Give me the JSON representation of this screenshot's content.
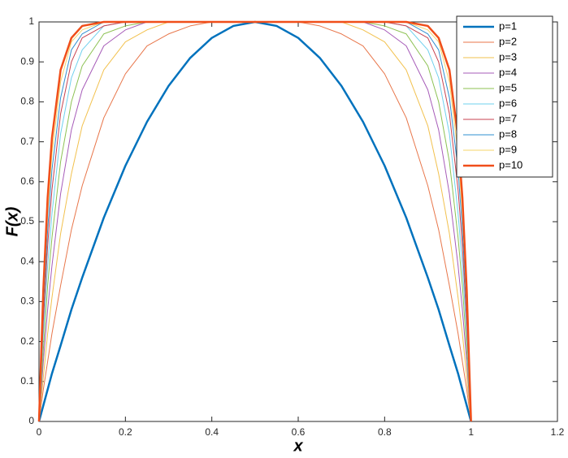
{
  "chart_data": {
    "type": "line",
    "x_label": "x",
    "y_label": "F(x)",
    "x": [
      0,
      0.01,
      0.02,
      0.03,
      0.05,
      0.075,
      0.1,
      0.15,
      0.2,
      0.25,
      0.3,
      0.35,
      0.4,
      0.45,
      0.5,
      0.55,
      0.6,
      0.65,
      0.7,
      0.75,
      0.8,
      0.85,
      0.9,
      0.925,
      0.95,
      0.97,
      0.98,
      0.99,
      1
    ],
    "xlim": [
      0,
      1.2
    ],
    "xticks": [
      0,
      0.2,
      0.4,
      0.6,
      0.8,
      1,
      1.2
    ],
    "ylim": [
      0,
      1
    ],
    "yticks": [
      0,
      0.1,
      0.2,
      0.3,
      0.4,
      0.5,
      0.6,
      0.7,
      0.8,
      0.9,
      1
    ],
    "legend": "northeast",
    "series": [
      {
        "name": "p=1",
        "color": "#0072bd",
        "width": 2.5,
        "values": [
          0,
          0.04,
          0.08,
          0.12,
          0.19,
          0.28,
          0.36,
          0.51,
          0.64,
          0.75,
          0.84,
          0.91,
          0.96,
          0.99,
          1,
          0.99,
          0.96,
          0.91,
          0.84,
          0.75,
          0.64,
          0.51,
          0.36,
          0.28,
          0.19,
          0.12,
          0.08,
          0.04,
          0
        ]
      },
      {
        "name": "p=2",
        "color": "#e8764a",
        "width": 1,
        "values": [
          0,
          0.08,
          0.15,
          0.22,
          0.34,
          0.48,
          0.59,
          0.76,
          0.87,
          0.94,
          0.97,
          0.99,
          1,
          1,
          1,
          1,
          1,
          0.99,
          0.97,
          0.94,
          0.87,
          0.76,
          0.59,
          0.48,
          0.34,
          0.22,
          0.15,
          0.08,
          0
        ]
      },
      {
        "name": "p=3",
        "color": "#f2c14e",
        "width": 1,
        "values": [
          0,
          0.11,
          0.22,
          0.31,
          0.47,
          0.62,
          0.74,
          0.88,
          0.95,
          0.98,
          1,
          1,
          1,
          1,
          1,
          1,
          1,
          1,
          1,
          0.98,
          0.95,
          0.88,
          0.74,
          0.62,
          0.47,
          0.31,
          0.22,
          0.11,
          0
        ]
      },
      {
        "name": "p=4",
        "color": "#a65bb8",
        "width": 1,
        "values": [
          0,
          0.15,
          0.28,
          0.39,
          0.57,
          0.73,
          0.83,
          0.94,
          0.98,
          1,
          1,
          1,
          1,
          1,
          1,
          1,
          1,
          1,
          1,
          1,
          0.98,
          0.94,
          0.83,
          0.73,
          0.57,
          0.39,
          0.28,
          0.15,
          0
        ]
      },
      {
        "name": "p=5",
        "color": "#8cc152",
        "width": 1,
        "values": [
          0,
          0.18,
          0.34,
          0.46,
          0.65,
          0.8,
          0.89,
          0.97,
          0.99,
          1,
          1,
          1,
          1,
          1,
          1,
          1,
          1,
          1,
          1,
          1,
          0.99,
          0.97,
          0.89,
          0.8,
          0.65,
          0.46,
          0.34,
          0.18,
          0
        ]
      },
      {
        "name": "p=6",
        "color": "#6fd0ee",
        "width": 1,
        "values": [
          0,
          0.22,
          0.39,
          0.52,
          0.72,
          0.86,
          0.93,
          0.99,
          1,
          1,
          1,
          1,
          1,
          1,
          1,
          1,
          1,
          1,
          1,
          1,
          1,
          0.99,
          0.93,
          0.86,
          0.72,
          0.52,
          0.39,
          0.22,
          0
        ]
      },
      {
        "name": "p=7",
        "color": "#c8414f",
        "width": 1,
        "values": [
          0,
          0.25,
          0.44,
          0.58,
          0.77,
          0.9,
          0.96,
          0.99,
          1,
          1,
          1,
          1,
          1,
          1,
          1,
          1,
          1,
          1,
          1,
          1,
          1,
          0.99,
          0.96,
          0.9,
          0.77,
          0.58,
          0.44,
          0.25,
          0
        ]
      },
      {
        "name": "p=8",
        "color": "#2f8fd0",
        "width": 1,
        "values": [
          0,
          0.28,
          0.48,
          0.63,
          0.81,
          0.93,
          0.97,
          1,
          1,
          1,
          1,
          1,
          1,
          1,
          1,
          1,
          1,
          1,
          1,
          1,
          1,
          1,
          0.97,
          0.93,
          0.81,
          0.63,
          0.48,
          0.28,
          0
        ]
      },
      {
        "name": "p=9",
        "color": "#f5d46a",
        "width": 1,
        "values": [
          0,
          0.3,
          0.52,
          0.67,
          0.85,
          0.95,
          0.98,
          1,
          1,
          1,
          1,
          1,
          1,
          1,
          1,
          1,
          1,
          1,
          1,
          1,
          1,
          1,
          0.98,
          0.95,
          0.85,
          0.67,
          0.52,
          0.3,
          0
        ]
      },
      {
        "name": "p=10",
        "color": "#f04e1a",
        "width": 2.5,
        "values": [
          0,
          0.33,
          0.56,
          0.71,
          0.88,
          0.96,
          0.99,
          1,
          1,
          1,
          1,
          1,
          1,
          1,
          1,
          1,
          1,
          1,
          1,
          1,
          1,
          1,
          0.99,
          0.96,
          0.88,
          0.71,
          0.56,
          0.33,
          0
        ]
      }
    ]
  }
}
